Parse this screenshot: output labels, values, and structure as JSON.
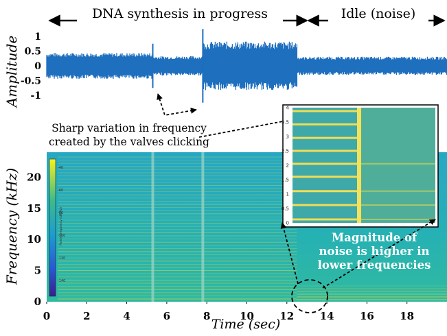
{
  "chart_data": [
    {
      "type": "line",
      "description_series": "audio amplitude waveform over time",
      "ylabel": "Amplitude",
      "yticks": [
        "1",
        "0.5",
        "0",
        "-0.5",
        "-1"
      ],
      "ylim": [
        -1.3,
        1.3
      ],
      "xlim": [
        0,
        20
      ],
      "segments": [
        {
          "label": "DNA synthesis in progress",
          "x_start": 0,
          "x_end": 12.5
        },
        {
          "label": "Idle (noise)",
          "x_start": 12.5,
          "x_end": 20
        }
      ],
      "envelope": [
        {
          "x0": 0,
          "x1": 5.3,
          "amp": 0.4
        },
        {
          "x0": 5.3,
          "x1": 7.8,
          "amp": 0.3
        },
        {
          "x0": 7.8,
          "x1": 12.5,
          "amp": 0.75
        },
        {
          "x0": 12.5,
          "x1": 20,
          "amp": 0.28
        }
      ],
      "spikes": [
        {
          "x": 5.3,
          "amp": 0.75
        },
        {
          "x": 7.8,
          "amp": 1.25
        }
      ],
      "annotation": "Sharp variation in frequency created by the valves clicking"
    },
    {
      "type": "heatmap",
      "ylabel": "Frequency (kHz)",
      "xlabel": "Time (sec)",
      "xticks": [
        0,
        2,
        4,
        6,
        8,
        10,
        12,
        14,
        16,
        18
      ],
      "yticks": [
        0,
        5,
        10,
        15,
        20
      ],
      "xlim": [
        0,
        20
      ],
      "ylim": [
        0,
        24
      ],
      "colorbar_label": "Power/frequency (dB/Hz)",
      "colorbar_ticks": [
        "-40",
        "-60",
        "-80",
        "-100",
        "-120",
        "-140"
      ],
      "inset": {
        "yticks": [
          "4",
          "3.5",
          "3",
          "2.5",
          "2",
          "1.5",
          "1",
          "0.5",
          "0"
        ],
        "ylim": [
          0,
          4
        ]
      },
      "annotation": "Magnitude of noise is higher in lower frequencies"
    }
  ],
  "colors": {
    "waveform": "#1f6fbf",
    "spectrogram_bg": "#25b7a7",
    "spectrogram_line": "#d6d24a",
    "highlight_text": "#ffffff"
  }
}
